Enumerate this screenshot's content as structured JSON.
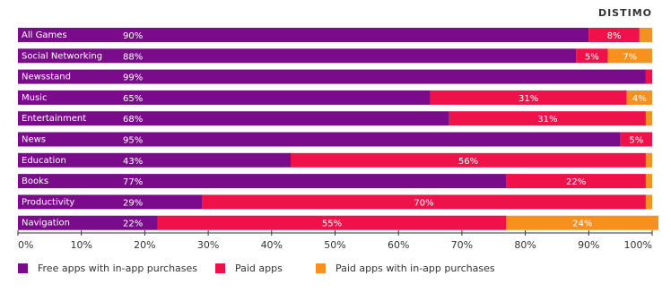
{
  "chart_data": {
    "type": "stacked-bar-horizontal",
    "brand": "DISTIMO",
    "categories": [
      "All Games",
      "Social Networking",
      "Newsstand",
      "Music",
      "Entertainment",
      "News",
      "Education",
      "Books",
      "Productivity",
      "Navigation"
    ],
    "series": [
      {
        "name": "Free apps with in-app purchases",
        "color": "#7a0c8c",
        "values": [
          90,
          88,
          99,
          65,
          68,
          95,
          43,
          77,
          29,
          22
        ],
        "value_labels": [
          "90%",
          "88%",
          "99%",
          "65%",
          "68%",
          "95%",
          "43%",
          "77%",
          "29%",
          "22%"
        ]
      },
      {
        "name": "Paid apps",
        "color": "#ef1149",
        "values": [
          8,
          5,
          1,
          31,
          31,
          5,
          56,
          22,
          70,
          55
        ],
        "value_labels": [
          "8%",
          "5%",
          null,
          "31%",
          "31%",
          "5%",
          "56%",
          "22%",
          "70%",
          "55%"
        ]
      },
      {
        "name": "Paid apps with in-app purchases",
        "color": "#f7901e",
        "values": [
          2,
          7,
          0,
          4,
          1,
          0,
          1,
          1,
          1,
          24
        ],
        "value_labels": [
          null,
          "7%",
          null,
          "4%",
          null,
          null,
          null,
          null,
          null,
          "24%"
        ]
      }
    ],
    "xlim": [
      0,
      100
    ],
    "xticks": [
      {
        "value": 0,
        "label": "0%"
      },
      {
        "value": 10,
        "label": "10%"
      },
      {
        "value": 20,
        "label": "20%"
      },
      {
        "value": 30,
        "label": "30%"
      },
      {
        "value": 40,
        "label": "40%"
      },
      {
        "value": 50,
        "label": "50%"
      },
      {
        "value": 60,
        "label": "60%"
      },
      {
        "value": 70,
        "label": "70%"
      },
      {
        "value": 80,
        "label": "80%"
      },
      {
        "value": 90,
        "label": "90%"
      },
      {
        "value": 100,
        "label": "100%"
      }
    ],
    "legend": "bottom"
  }
}
